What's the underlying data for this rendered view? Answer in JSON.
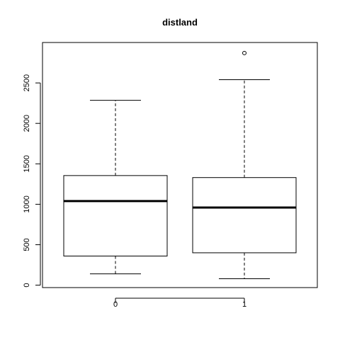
{
  "chart_data": {
    "type": "box",
    "title": "distland",
    "xlabel": "",
    "ylabel": "",
    "categories": [
      "0",
      "1"
    ],
    "boxes": [
      {
        "category": "0",
        "whisker_low": 140,
        "q1": 360,
        "median": 1040,
        "q3": 1355,
        "whisker_high": 2285,
        "outliers": []
      },
      {
        "category": "1",
        "whisker_low": 80,
        "q1": 400,
        "median": 960,
        "q3": 1330,
        "whisker_high": 2540,
        "outliers": [
          2870
        ]
      }
    ],
    "ylim": [
      -30,
      3000
    ],
    "yticks": [
      0,
      500,
      1000,
      1500,
      2000,
      2500
    ],
    "ytick_labels": [
      "0",
      "500",
      "1000",
      "1500",
      "2000",
      "2500"
    ],
    "grid": false,
    "legend": "none",
    "colors": {
      "box_fill": "#ffffff",
      "stroke": "#000000"
    }
  }
}
